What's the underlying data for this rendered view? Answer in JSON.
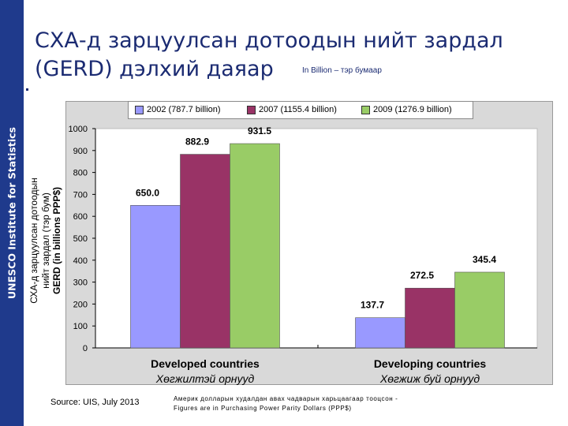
{
  "side_label": "UNESCO Institute for Statistics",
  "title_lines": [
    "СХА-д зарцуулсан дотоодын нийт зардал",
    "(GERD) дэлхий даяар"
  ],
  "units_note": "In Billion – тэр бумаар",
  "source": "Source: UIS, July 2013",
  "footnote_lines": [
    "Америк долларын худалдан авах чадварын харьцаагаар тооцсон -",
    "Figures are in Purchasing Power Parity Dollars (PPP$)"
  ],
  "ylabel_lines": [
    "СХА-д зарцуулсан дотоодын",
    "нийт зардал (тэр бум)",
    "GERD (in billions PPP$)"
  ],
  "colors": {
    "series": [
      "#9999ff",
      "#993366",
      "#99cc66"
    ],
    "frame": "#d9d9d9",
    "plot": "#ffffff",
    "side_bar": "#1f3a8c"
  },
  "chart_data": {
    "type": "bar",
    "categories": [
      "Developed countries",
      "Developing countries"
    ],
    "category_sublabels": [
      "Хөгжилтэй орнууд",
      "Хөгжиж буй орнууд"
    ],
    "series": [
      {
        "name": "2002 (787.7 billion)",
        "values": [
          650.0,
          137.7
        ],
        "labels": [
          "650.0",
          "137.7"
        ]
      },
      {
        "name": "2007 (1155.4 billion)",
        "values": [
          882.9,
          272.5
        ],
        "labels": [
          "882.9",
          "272.5"
        ]
      },
      {
        "name": "2009 (1276.9 billion)",
        "values": [
          931.5,
          345.4
        ],
        "labels": [
          "931.5",
          "345.4"
        ]
      }
    ],
    "ylim": [
      0,
      1000
    ],
    "yticks": [
      "0",
      "100",
      "200",
      "300",
      "400",
      "500",
      "600",
      "700",
      "800",
      "900",
      "1000"
    ],
    "grid": false,
    "legend": "top"
  }
}
